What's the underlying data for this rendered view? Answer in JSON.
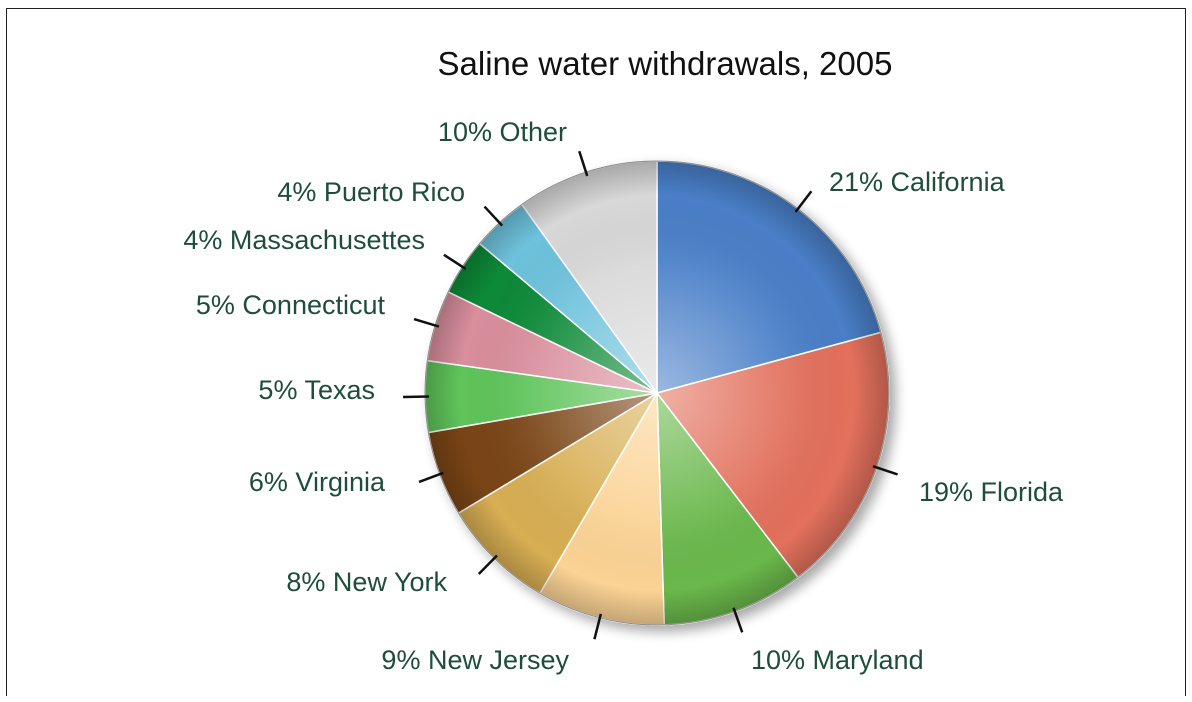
{
  "chart_data": {
    "type": "pie",
    "title": "Saline water withdrawals, 2005",
    "slices": [
      {
        "label": "California",
        "percent_label": "21%",
        "value": 21,
        "color": "#4a7fc8"
      },
      {
        "label": "Florida",
        "percent_label": "19%",
        "value": 19,
        "color": "#e2705c"
      },
      {
        "label": "Maryland",
        "percent_label": "10%",
        "value": 10,
        "color": "#6ab84c"
      },
      {
        "label": "New Jersey",
        "percent_label": "9%",
        "value": 9,
        "color": "#fbd394"
      },
      {
        "label": "New York",
        "percent_label": "8%",
        "value": 8,
        "color": "#d8ae52"
      },
      {
        "label": "Virginia",
        "percent_label": "6%",
        "value": 6,
        "color": "#7a4416"
      },
      {
        "label": "Texas",
        "percent_label": "5%",
        "value": 5,
        "color": "#5ec45a"
      },
      {
        "label": "Connecticut",
        "percent_label": "5%",
        "value": 5,
        "color": "#d98e9c"
      },
      {
        "label": "Massachusettes",
        "percent_label": "4%",
        "value": 4,
        "color": "#0c8a38"
      },
      {
        "label": "Puerto Rico",
        "percent_label": "4%",
        "value": 4,
        "color": "#6ec2dc"
      },
      {
        "label": "Other",
        "percent_label": "10%",
        "value": 10,
        "color": "#d8d8d8"
      }
    ],
    "start": "12 o'clock",
    "direction": "clockwise",
    "label_color": "#1e4d3c",
    "legend": "none (labels placed around pie with leader lines)"
  }
}
